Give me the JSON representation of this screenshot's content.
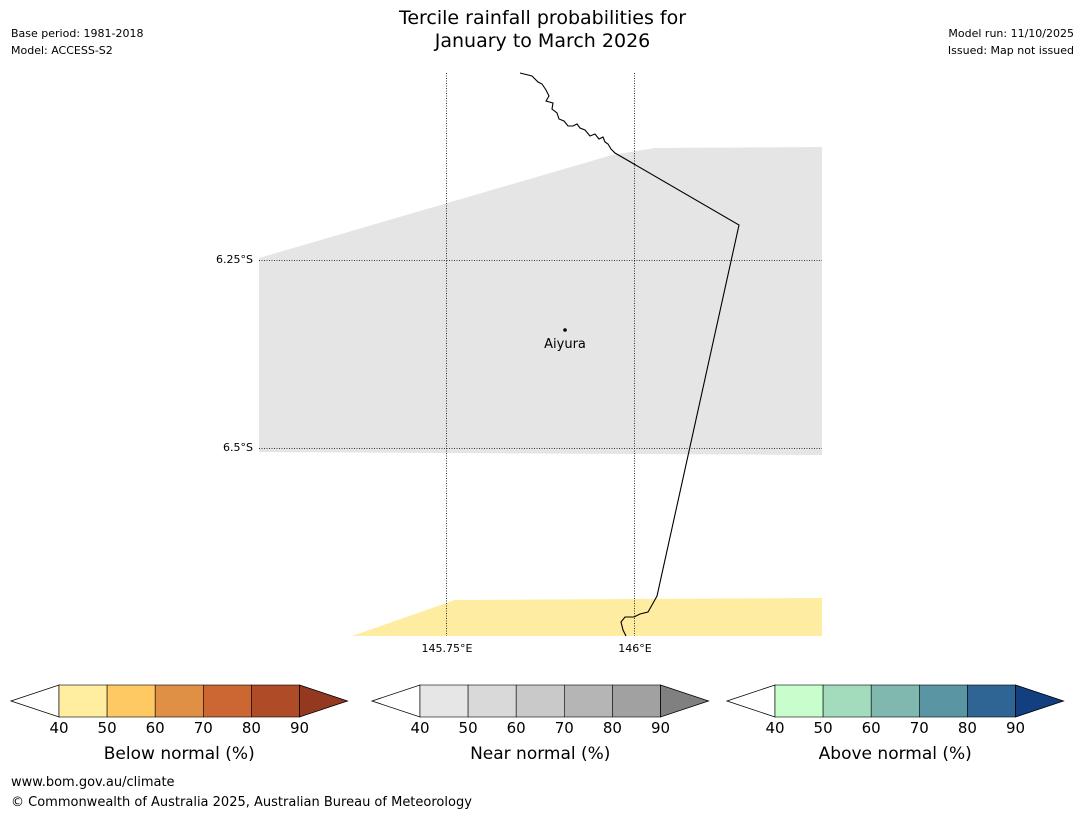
{
  "header": {
    "title_line1": "Tercile rainfall probabilities for",
    "title_line2": "January to March 2026",
    "base_period": "Base period: 1981-2018",
    "model": "Model: ACCESS-S2",
    "model_run": "Model run: 11/10/2025",
    "issued": "Issued: Map not issued"
  },
  "map": {
    "latitude_labels": [
      "6.25°S",
      "6.5°S"
    ],
    "longitude_labels": [
      "145.75°E",
      "146°E"
    ],
    "place": "Aiyura",
    "colors": {
      "near_normal_fill": "#e5e5e5",
      "below_normal_fill": "#feeca0",
      "coastline": "#000000"
    }
  },
  "colorbars": [
    {
      "title": "Below normal (%)",
      "ticks": [
        "40",
        "50",
        "60",
        "70",
        "80",
        "90"
      ],
      "colors": [
        "#ffeda0",
        "#fec962",
        "#e09044",
        "#cc6633",
        "#b04b28",
        "#94381f"
      ]
    },
    {
      "title": "Near normal (%)",
      "ticks": [
        "40",
        "50",
        "60",
        "70",
        "80",
        "90"
      ],
      "colors": [
        "#e6e6e6",
        "#d9d9d9",
        "#c9c9c9",
        "#b5b5b5",
        "#a1a1a1",
        "#808080"
      ]
    },
    {
      "title": "Above normal (%)",
      "ticks": [
        "40",
        "50",
        "60",
        "70",
        "80",
        "90"
      ],
      "colors": [
        "#c7fecb",
        "#a3dcbc",
        "#80b8b0",
        "#5995a2",
        "#2f6595",
        "#123f7f"
      ]
    }
  ],
  "footer": {
    "url": "www.bom.gov.au/climate",
    "copyright": "© Commonwealth of Australia 2025, Australian Bureau of Meteorology"
  }
}
